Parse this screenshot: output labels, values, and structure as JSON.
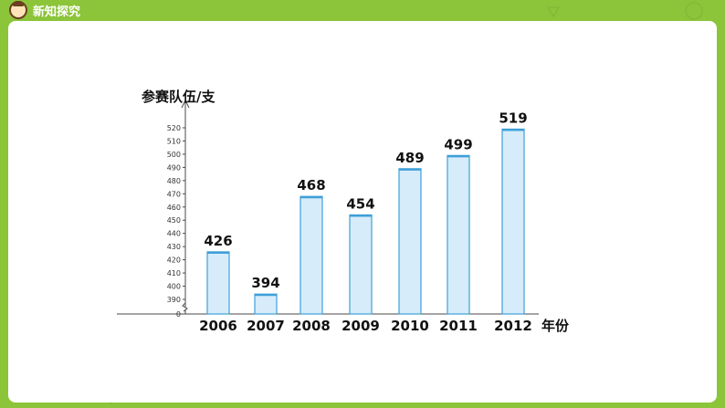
{
  "header": {
    "section_title": "新知探究",
    "mascot_icon": "mascot-icon"
  },
  "colors": {
    "background": "#8cc43a",
    "card": "#ffffff",
    "bar_fill": "#d6ecfa",
    "bar_stroke": "#3f9fd8",
    "text": "#111111"
  },
  "chart_data": {
    "type": "bar",
    "ylabel": "参赛队伍/支",
    "xlabel": "年份",
    "categories": [
      "2006",
      "2007",
      "2008",
      "2009",
      "2010",
      "2011",
      "2012"
    ],
    "values": [
      426,
      394,
      468,
      454,
      489,
      499,
      519
    ],
    "data_labels": [
      "426",
      "394",
      "468",
      "454",
      "489",
      "499",
      "519"
    ],
    "y_axis_break": true,
    "yticks": [
      "0",
      "390",
      "400",
      "410",
      "420",
      "430",
      "440",
      "450",
      "460",
      "470",
      "480",
      "490",
      "500",
      "510",
      "520"
    ],
    "ylim": [
      390,
      520
    ],
    "grid": false
  }
}
